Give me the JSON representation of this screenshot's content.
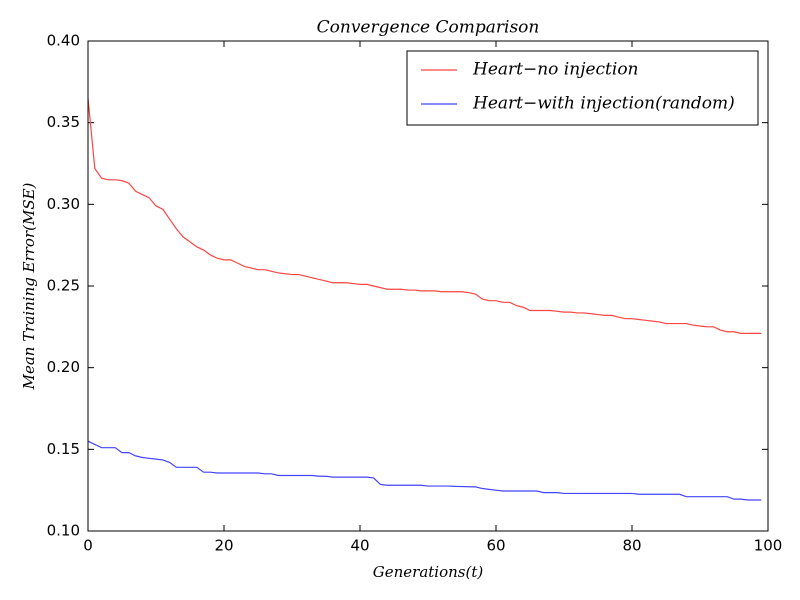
{
  "chart_data": {
    "type": "line",
    "title": "Convergence Comparison",
    "xlabel": "Generations(t)",
    "ylabel": "Mean Training Error(MSE)",
    "x": [
      0,
      1,
      2,
      3,
      4,
      5,
      6,
      7,
      8,
      9,
      10,
      11,
      12,
      13,
      14,
      15,
      16,
      17,
      18,
      19,
      20,
      21,
      22,
      23,
      24,
      25,
      26,
      27,
      28,
      29,
      30,
      31,
      32,
      33,
      34,
      35,
      36,
      37,
      38,
      39,
      40,
      41,
      42,
      43,
      44,
      45,
      46,
      47,
      48,
      49,
      50,
      51,
      52,
      53,
      54,
      55,
      56,
      57,
      58,
      59,
      60,
      61,
      62,
      63,
      64,
      65,
      66,
      67,
      68,
      69,
      70,
      71,
      72,
      73,
      74,
      75,
      76,
      77,
      78,
      79,
      80,
      81,
      82,
      83,
      84,
      85,
      86,
      87,
      88,
      89,
      90,
      91,
      92,
      93,
      94,
      95,
      96,
      97,
      98,
      99
    ],
    "series": [
      {
        "name": "Heart−no injection",
        "color": "#ff4444",
        "values": [
          0.365,
          0.322,
          0.316,
          0.315,
          0.315,
          0.3145,
          0.313,
          0.308,
          0.306,
          0.304,
          0.299,
          0.297,
          0.291,
          0.285,
          0.28,
          0.277,
          0.274,
          0.272,
          0.269,
          0.267,
          0.266,
          0.266,
          0.264,
          0.262,
          0.261,
          0.26,
          0.26,
          0.259,
          0.258,
          0.2575,
          0.257,
          0.257,
          0.256,
          0.255,
          0.254,
          0.253,
          0.252,
          0.252,
          0.252,
          0.2515,
          0.251,
          0.251,
          0.25,
          0.249,
          0.248,
          0.248,
          0.248,
          0.2475,
          0.2475,
          0.247,
          0.247,
          0.247,
          0.2465,
          0.2465,
          0.2465,
          0.2465,
          0.246,
          0.245,
          0.242,
          0.241,
          0.241,
          0.24,
          0.24,
          0.238,
          0.237,
          0.235,
          0.235,
          0.235,
          0.235,
          0.2345,
          0.234,
          0.234,
          0.2335,
          0.2335,
          0.233,
          0.2325,
          0.232,
          0.232,
          0.231,
          0.23,
          0.23,
          0.2295,
          0.229,
          0.2285,
          0.228,
          0.227,
          0.227,
          0.227,
          0.227,
          0.226,
          0.2255,
          0.225,
          0.225,
          0.223,
          0.222,
          0.222,
          0.221,
          0.221,
          0.221,
          0.221
        ]
      },
      {
        "name": "Heart−with injection(random)",
        "color": "#4444ff",
        "values": [
          0.155,
          0.153,
          0.151,
          0.151,
          0.151,
          0.148,
          0.148,
          0.146,
          0.145,
          0.1445,
          0.144,
          0.1435,
          0.142,
          0.139,
          0.139,
          0.139,
          0.139,
          0.136,
          0.136,
          0.1355,
          0.1355,
          0.1355,
          0.1355,
          0.1355,
          0.1355,
          0.1355,
          0.135,
          0.135,
          0.134,
          0.134,
          0.134,
          0.134,
          0.134,
          0.134,
          0.1335,
          0.1335,
          0.133,
          0.133,
          0.133,
          0.133,
          0.133,
          0.133,
          0.1325,
          0.1285,
          0.128,
          0.128,
          0.128,
          0.128,
          0.128,
          0.128,
          0.1275,
          0.1275,
          0.1275,
          0.1275,
          0.1273,
          0.1272,
          0.1271,
          0.127,
          0.126,
          0.1255,
          0.125,
          0.1245,
          0.1245,
          0.1245,
          0.1245,
          0.1245,
          0.1245,
          0.1235,
          0.1235,
          0.1235,
          0.123,
          0.123,
          0.123,
          0.123,
          0.123,
          0.123,
          0.123,
          0.123,
          0.123,
          0.123,
          0.123,
          0.1225,
          0.1225,
          0.1225,
          0.1225,
          0.1225,
          0.1225,
          0.1225,
          0.121,
          0.121,
          0.121,
          0.121,
          0.121,
          0.121,
          0.121,
          0.1195,
          0.1195,
          0.119,
          0.119,
          0.119
        ]
      }
    ],
    "xlim": [
      0,
      100
    ],
    "xticks": [
      0,
      20,
      40,
      60,
      80,
      100
    ],
    "ylim": [
      0.1,
      0.4
    ],
    "yticks": [
      {
        "value": 0.1,
        "label": "0.10"
      },
      0.15,
      {
        "value": 0.2,
        "label": "0.20"
      },
      0.25,
      {
        "value": 0.3,
        "label": "0.30"
      },
      0.35,
      {
        "value": 0.4,
        "label": "0.40"
      }
    ],
    "grid": false,
    "legend": "upper right"
  }
}
